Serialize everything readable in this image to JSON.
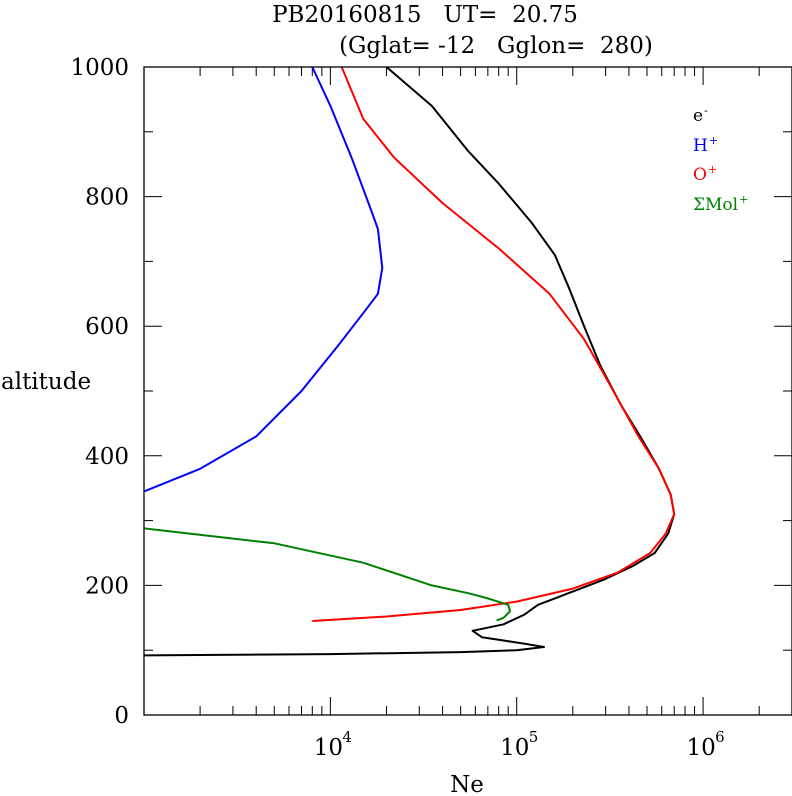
{
  "chart_data": {
    "type": "line",
    "title_line1": "PB20160815   UT=  20.75",
    "title_line2": "(Gglat= -12   Gglon=  280)",
    "xlabel": "Ne",
    "ylabel": "altitude",
    "xscale": "log",
    "xlim": [
      1000,
      3000000
    ],
    "ylim": [
      0,
      1000
    ],
    "yticks": [
      0,
      200,
      400,
      600,
      800,
      1000
    ],
    "ytick_labels": [
      "0",
      "200",
      "400",
      "600",
      "800",
      "1000"
    ],
    "xtick_labels": [
      {
        "base": "10",
        "exp": "4"
      },
      {
        "base": "10",
        "exp": "5"
      },
      {
        "base": "10",
        "exp": "6"
      }
    ],
    "grid": false,
    "legend_position": "top-right",
    "legend": [
      {
        "base": "e",
        "sup": "-",
        "color": "#000000"
      },
      {
        "base": "H",
        "sup": "+",
        "color": "#0000ff"
      },
      {
        "base": "O",
        "sup": "+",
        "color": "#ff0000"
      },
      {
        "base": "ΣMol",
        "sup": "+",
        "color": "#008000"
      }
    ],
    "series": [
      {
        "color": "#000000",
        "points": [
          [
            1000,
            92
          ],
          [
            10000,
            94
          ],
          [
            50000,
            97
          ],
          [
            100000,
            100
          ],
          [
            140000,
            105
          ],
          [
            110000,
            110
          ],
          [
            85000,
            115
          ],
          [
            65000,
            120
          ],
          [
            58000,
            130
          ],
          [
            85000,
            140
          ],
          [
            110000,
            155
          ],
          [
            130000,
            170
          ],
          [
            160000,
            180
          ],
          [
            220000,
            195
          ],
          [
            300000,
            210
          ],
          [
            420000,
            230
          ],
          [
            550000,
            250
          ],
          [
            650000,
            280
          ],
          [
            700000,
            310
          ],
          [
            670000,
            340
          ],
          [
            580000,
            380
          ],
          [
            460000,
            430
          ],
          [
            360000,
            480
          ],
          [
            280000,
            540
          ],
          [
            230000,
            600
          ],
          [
            190000,
            660
          ],
          [
            160000,
            710
          ],
          [
            120000,
            760
          ],
          [
            80000,
            820
          ],
          [
            55000,
            870
          ],
          [
            35000,
            940
          ],
          [
            20000,
            1000
          ]
        ]
      },
      {
        "color": "#0000ff",
        "points": [
          [
            1000,
            345
          ],
          [
            2000,
            380
          ],
          [
            4000,
            430
          ],
          [
            7000,
            500
          ],
          [
            11000,
            570
          ],
          [
            15000,
            620
          ],
          [
            18000,
            650
          ],
          [
            19000,
            690
          ],
          [
            18000,
            750
          ],
          [
            16500,
            780
          ],
          [
            13000,
            860
          ],
          [
            10000,
            940
          ],
          [
            8000,
            1000
          ]
        ]
      },
      {
        "color": "#ff0000",
        "points": [
          [
            8000,
            145
          ],
          [
            20000,
            152
          ],
          [
            50000,
            162
          ],
          [
            100000,
            175
          ],
          [
            200000,
            195
          ],
          [
            350000,
            220
          ],
          [
            520000,
            250
          ],
          [
            630000,
            280
          ],
          [
            700000,
            310
          ],
          [
            670000,
            340
          ],
          [
            580000,
            380
          ],
          [
            450000,
            430
          ],
          [
            330000,
            500
          ],
          [
            230000,
            580
          ],
          [
            150000,
            650
          ],
          [
            80000,
            720
          ],
          [
            40000,
            790
          ],
          [
            22000,
            860
          ],
          [
            15000,
            920
          ],
          [
            11500,
            1000
          ]
        ]
      },
      {
        "color": "#008000",
        "points": [
          [
            1000,
            288
          ],
          [
            5000,
            265
          ],
          [
            15000,
            235
          ],
          [
            35000,
            200
          ],
          [
            55000,
            188
          ],
          [
            70000,
            180
          ],
          [
            90000,
            170
          ],
          [
            92000,
            160
          ],
          [
            85000,
            150
          ],
          [
            78000,
            146
          ]
        ]
      }
    ]
  }
}
